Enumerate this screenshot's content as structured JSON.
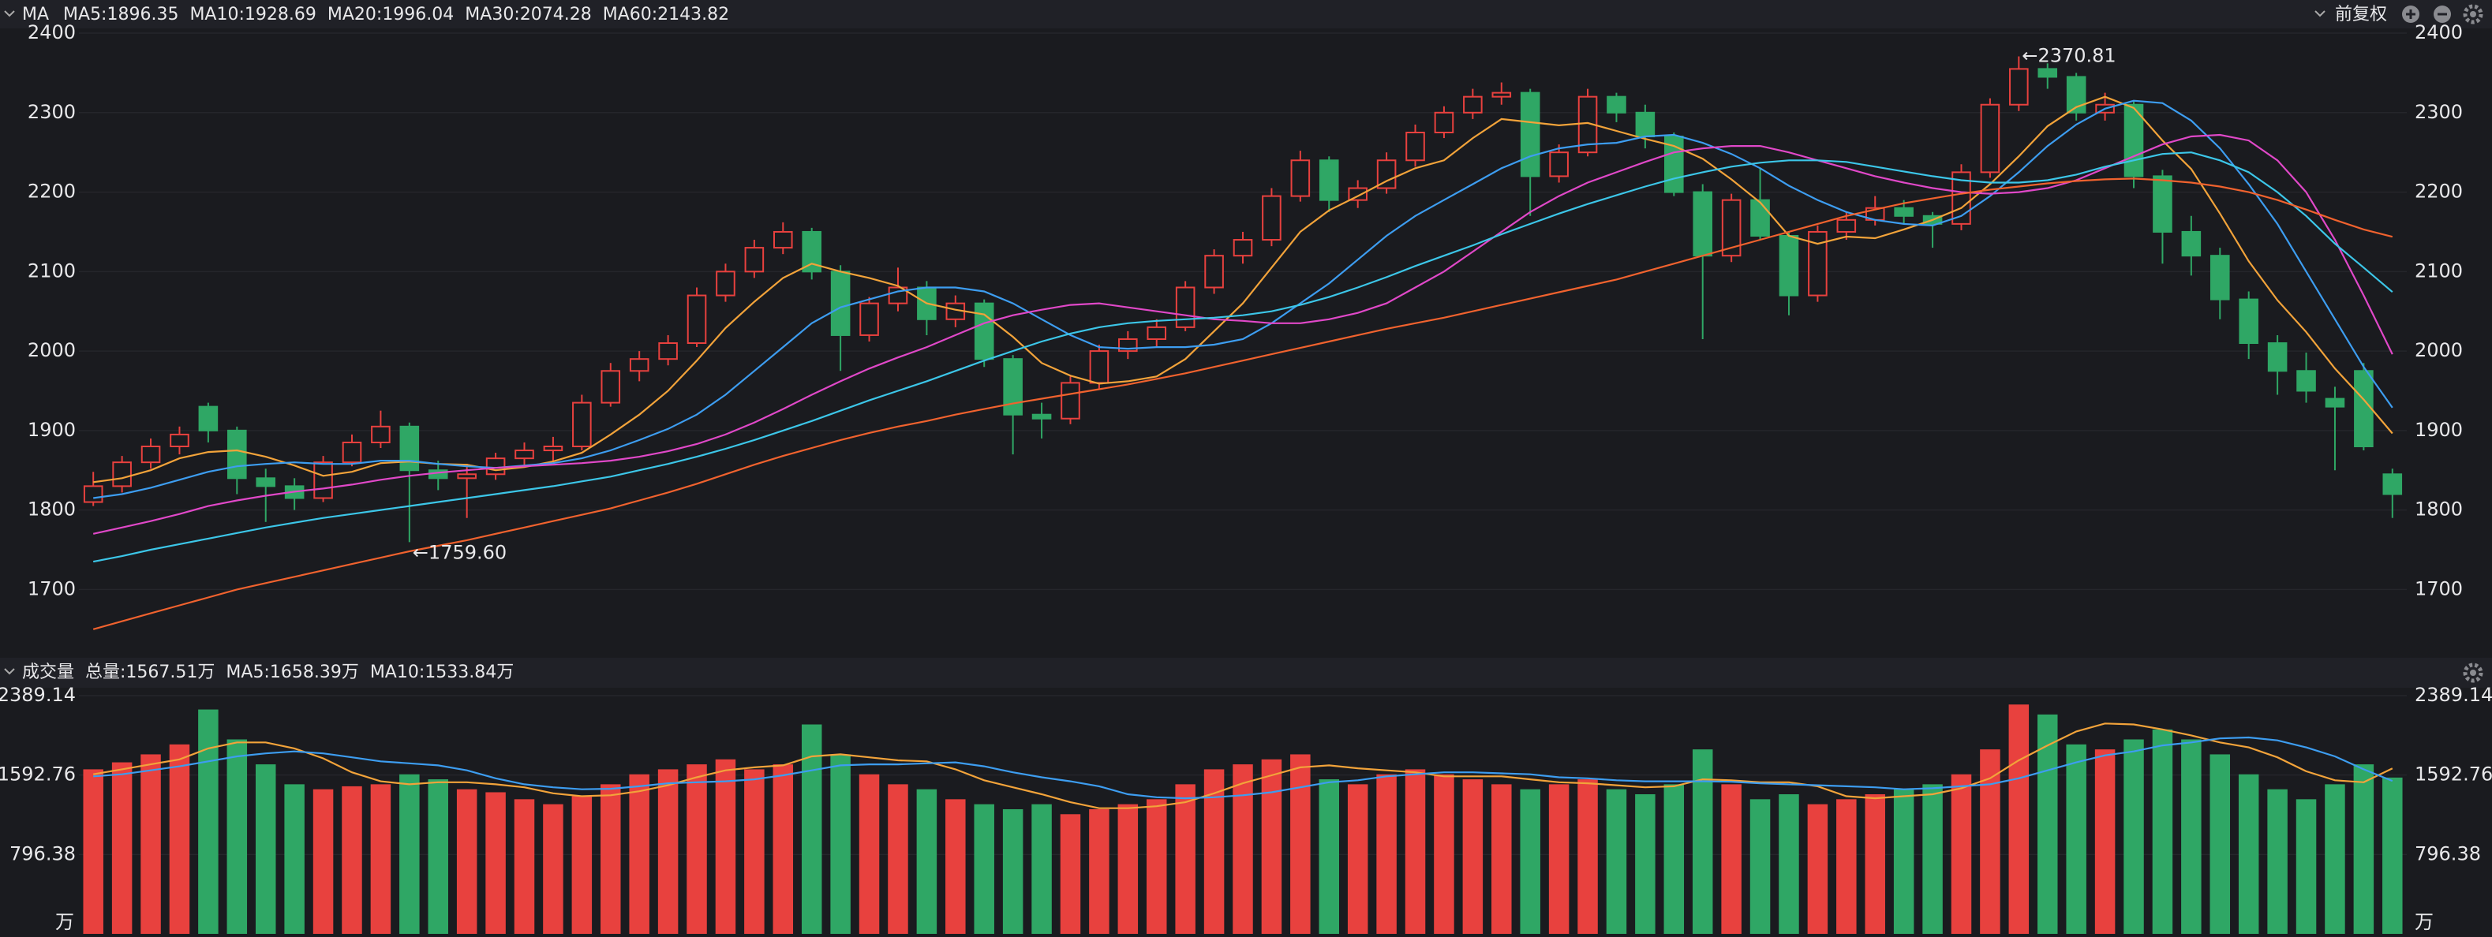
{
  "chart_data": [
    {
      "type": "candlestick",
      "title": "MA",
      "adjustment": "前复权",
      "up_color": "#e8413e",
      "down_color": "#2fa765",
      "ylim": [
        1618,
        2406
      ],
      "yticks": [
        1700,
        1800,
        1900,
        2000,
        2100,
        2200,
        2300,
        2400
      ],
      "grid": true,
      "open": [
        1810,
        1830,
        1860,
        1880,
        1930,
        1900,
        1840,
        1830,
        1815,
        1860,
        1885,
        1905,
        1850,
        1840,
        1845,
        1865,
        1875,
        1880,
        1935,
        1975,
        1990,
        2010,
        2070,
        2100,
        2130,
        2150,
        2100,
        2020,
        2060,
        2080,
        2040,
        2060,
        1990,
        1920,
        1915,
        1960,
        2000,
        2015,
        2030,
        2080,
        2120,
        2140,
        2195,
        2240,
        2190,
        2205,
        2240,
        2275,
        2300,
        2320,
        2325,
        2220,
        2250,
        2320,
        2300,
        2270,
        2200,
        2120,
        2190,
        2145,
        2070,
        2150,
        2165,
        2180,
        2170,
        2160,
        2225,
        2310,
        2355,
        2345,
        2300,
        2310,
        2220,
        2150,
        2120,
        2065,
        2010,
        1975,
        1940,
        1975,
        1845
      ],
      "high": [
        1848,
        1868,
        1890,
        1905,
        1935,
        1905,
        1852,
        1840,
        1868,
        1895,
        1925,
        1910,
        1862,
        1858,
        1872,
        1885,
        1892,
        1945,
        1985,
        2000,
        2020,
        2080,
        2110,
        2140,
        2162,
        2155,
        2108,
        2068,
        2105,
        2088,
        2070,
        2065,
        1995,
        1935,
        1968,
        2008,
        2025,
        2040,
        2088,
        2128,
        2150,
        2205,
        2252,
        2245,
        2215,
        2250,
        2285,
        2308,
        2330,
        2338,
        2330,
        2260,
        2330,
        2325,
        2310,
        2275,
        2210,
        2198,
        2230,
        2150,
        2158,
        2175,
        2195,
        2190,
        2175,
        2235,
        2318,
        2370.81,
        2362,
        2350,
        2325,
        2315,
        2228,
        2170,
        2130,
        2075,
        2020,
        1998,
        1955,
        1985,
        1852
      ],
      "low": [
        1805,
        1822,
        1852,
        1870,
        1885,
        1820,
        1785,
        1800,
        1810,
        1855,
        1878,
        1759.6,
        1825,
        1790,
        1838,
        1855,
        1862,
        1875,
        1930,
        1962,
        1982,
        2005,
        2062,
        2092,
        2122,
        2090,
        1975,
        2012,
        2050,
        2020,
        2030,
        1980,
        1870,
        1890,
        1908,
        1952,
        1990,
        2005,
        2025,
        2072,
        2110,
        2132,
        2188,
        2175,
        2180,
        2198,
        2232,
        2268,
        2292,
        2310,
        2170,
        2212,
        2245,
        2288,
        2255,
        2195,
        2015,
        2112,
        2140,
        2045,
        2062,
        2140,
        2158,
        2160,
        2130,
        2152,
        2218,
        2302,
        2330,
        2290,
        2290,
        2205,
        2110,
        2095,
        2040,
        1990,
        1945,
        1935,
        1850,
        1875,
        1790
      ],
      "close": [
        1830,
        1860,
        1880,
        1895,
        1900,
        1840,
        1830,
        1815,
        1860,
        1885,
        1905,
        1850,
        1840,
        1845,
        1865,
        1875,
        1880,
        1935,
        1975,
        1990,
        2010,
        2070,
        2100,
        2130,
        2150,
        2100,
        2020,
        2060,
        2080,
        2040,
        2060,
        1990,
        1920,
        1915,
        1960,
        2000,
        2015,
        2030,
        2080,
        2120,
        2140,
        2195,
        2240,
        2190,
        2205,
        2240,
        2275,
        2300,
        2320,
        2325,
        2220,
        2250,
        2320,
        2300,
        2270,
        2200,
        2120,
        2190,
        2145,
        2070,
        2150,
        2165,
        2180,
        2170,
        2160,
        2225,
        2310,
        2355,
        2345,
        2300,
        2310,
        2220,
        2150,
        2120,
        2065,
        2010,
        1975,
        1950,
        1930,
        1880,
        1820
      ],
      "series": [
        {
          "label": "MA5:1896.35",
          "color": "#f2a33a",
          "values": [
            1835,
            1840,
            1850,
            1865,
            1873,
            1875,
            1867,
            1856,
            1843,
            1848,
            1859,
            1861,
            1858,
            1857,
            1850,
            1854,
            1861,
            1872,
            1895,
            1920,
            1950,
            1988,
            2029,
            2062,
            2092,
            2110,
            2100,
            2092,
            2082,
            2060,
            2052,
            2046,
            2018,
            1985,
            1969,
            1959,
            1962,
            1968,
            1990,
            2025,
            2060,
            2105,
            2150,
            2177,
            2195,
            2214,
            2230,
            2240,
            2268,
            2292,
            2288,
            2284,
            2287,
            2277,
            2267,
            2258,
            2242,
            2216,
            2187,
            2145,
            2135,
            2144,
            2142,
            2153,
            2165,
            2180,
            2210,
            2245,
            2283,
            2307,
            2320,
            2306,
            2265,
            2229,
            2173,
            2113,
            2064,
            2024,
            1978,
            1939,
            1896.35
          ]
        },
        {
          "label": "MA10:1928.69",
          "color": "#3d9df0",
          "values": [
            1815,
            1820,
            1828,
            1838,
            1848,
            1855,
            1858,
            1860,
            1858,
            1858,
            1862,
            1862,
            1858,
            1855,
            1853,
            1856,
            1859,
            1865,
            1875,
            1888,
            1902,
            1920,
            1945,
            1975,
            2005,
            2035,
            2055,
            2065,
            2075,
            2080,
            2080,
            2075,
            2060,
            2040,
            2020,
            2005,
            2003,
            2005,
            2005,
            2008,
            2015,
            2035,
            2060,
            2085,
            2115,
            2145,
            2170,
            2190,
            2210,
            2230,
            2245,
            2255,
            2260,
            2262,
            2270,
            2272,
            2262,
            2248,
            2230,
            2208,
            2190,
            2175,
            2165,
            2160,
            2158,
            2170,
            2195,
            2225,
            2258,
            2285,
            2305,
            2315,
            2312,
            2290,
            2255,
            2210,
            2160,
            2100,
            2040,
            1980,
            1928.69
          ]
        },
        {
          "label": "MA20:1996.04",
          "color": "#e048c8",
          "values": [
            1770,
            1778,
            1786,
            1795,
            1805,
            1812,
            1818,
            1823,
            1827,
            1832,
            1838,
            1843,
            1847,
            1850,
            1853,
            1855,
            1857,
            1859,
            1862,
            1867,
            1874,
            1883,
            1895,
            1910,
            1927,
            1945,
            1962,
            1978,
            1992,
            2005,
            2020,
            2035,
            2045,
            2052,
            2058,
            2060,
            2055,
            2050,
            2045,
            2040,
            2038,
            2035,
            2035,
            2040,
            2048,
            2060,
            2080,
            2100,
            2125,
            2150,
            2175,
            2195,
            2212,
            2225,
            2238,
            2250,
            2255,
            2258,
            2258,
            2250,
            2240,
            2230,
            2220,
            2212,
            2205,
            2200,
            2198,
            2200,
            2205,
            2215,
            2230,
            2245,
            2260,
            2270,
            2272,
            2265,
            2240,
            2200,
            2140,
            2070,
            1996.04
          ]
        },
        {
          "label": "MA30:2074.28",
          "color": "#3cc6e8",
          "values": [
            1735,
            1742,
            1750,
            1757,
            1764,
            1771,
            1778,
            1784,
            1790,
            1795,
            1800,
            1805,
            1810,
            1815,
            1820,
            1825,
            1830,
            1836,
            1842,
            1850,
            1858,
            1867,
            1877,
            1888,
            1900,
            1912,
            1925,
            1938,
            1950,
            1962,
            1975,
            1988,
            2000,
            2012,
            2022,
            2030,
            2035,
            2038,
            2040,
            2042,
            2045,
            2050,
            2058,
            2068,
            2080,
            2093,
            2107,
            2120,
            2133,
            2147,
            2160,
            2173,
            2185,
            2196,
            2207,
            2217,
            2225,
            2232,
            2237,
            2240,
            2240,
            2238,
            2232,
            2226,
            2220,
            2215,
            2212,
            2212,
            2215,
            2222,
            2232,
            2240,
            2248,
            2250,
            2240,
            2225,
            2200,
            2170,
            2135,
            2105,
            2074.28
          ]
        },
        {
          "label": "MA60:2143.82",
          "color": "#f0622e",
          "values": [
            1650,
            1660,
            1670,
            1680,
            1690,
            1700,
            1708,
            1716,
            1724,
            1732,
            1740,
            1748,
            1755,
            1762,
            1770,
            1778,
            1786,
            1794,
            1802,
            1812,
            1822,
            1833,
            1845,
            1857,
            1868,
            1878,
            1888,
            1897,
            1905,
            1912,
            1920,
            1927,
            1934,
            1940,
            1946,
            1952,
            1958,
            1965,
            1972,
            1980,
            1988,
            1996,
            2004,
            2012,
            2020,
            2028,
            2035,
            2042,
            2050,
            2058,
            2066,
            2074,
            2082,
            2090,
            2100,
            2110,
            2120,
            2130,
            2140,
            2150,
            2160,
            2170,
            2178,
            2186,
            2192,
            2198,
            2203,
            2207,
            2211,
            2214,
            2216,
            2217,
            2215,
            2212,
            2207,
            2200,
            2190,
            2178,
            2165,
            2153,
            2143.82
          ]
        }
      ],
      "annotations": [
        {
          "label": "←2370.81",
          "value": 2370.81
        },
        {
          "label": "←1759.60",
          "value": 1759.6
        }
      ]
    },
    {
      "type": "volume",
      "title": "成交量",
      "total_label": "总量:1567.51万",
      "total_color": "#2fa765",
      "unit": "万",
      "ylim": [
        0,
        2468
      ],
      "yticks": [
        796.38,
        1592.76,
        2389.14
      ],
      "grid": true,
      "values": [
        1650,
        1720,
        1800,
        1900,
        2250,
        1950,
        1700,
        1500,
        1450,
        1480,
        1500,
        1600,
        1550,
        1450,
        1420,
        1350,
        1300,
        1380,
        1500,
        1600,
        1650,
        1700,
        1750,
        1650,
        1700,
        2100,
        1800,
        1600,
        1500,
        1450,
        1350,
        1300,
        1250,
        1300,
        1200,
        1250,
        1300,
        1350,
        1500,
        1650,
        1700,
        1750,
        1800,
        1550,
        1500,
        1600,
        1650,
        1600,
        1550,
        1500,
        1450,
        1500,
        1550,
        1450,
        1400,
        1500,
        1850,
        1500,
        1350,
        1400,
        1300,
        1350,
        1400,
        1450,
        1500,
        1600,
        1850,
        2300,
        2200,
        1900,
        1850,
        1950,
        2050,
        1950,
        1800,
        1600,
        1450,
        1350,
        1500,
        1700,
        1567.51
      ],
      "series": [
        {
          "label": "MA5:1658.39万",
          "color": "#f2a33a",
          "values": [
            1600,
            1650,
            1700,
            1750,
            1860,
            1920,
            1920,
            1860,
            1760,
            1620,
            1530,
            1500,
            1520,
            1520,
            1500,
            1470,
            1410,
            1380,
            1390,
            1430,
            1490,
            1570,
            1640,
            1670,
            1690,
            1780,
            1800,
            1770,
            1740,
            1730,
            1650,
            1540,
            1470,
            1400,
            1320,
            1260,
            1260,
            1280,
            1320,
            1410,
            1510,
            1590,
            1670,
            1690,
            1660,
            1640,
            1620,
            1580,
            1580,
            1580,
            1550,
            1520,
            1510,
            1490,
            1470,
            1480,
            1550,
            1540,
            1520,
            1520,
            1480,
            1380,
            1360,
            1380,
            1400,
            1460,
            1560,
            1740,
            1890,
            2030,
            2110,
            2100,
            2050,
            1990,
            1920,
            1870,
            1770,
            1630,
            1540,
            1520,
            1658.39
          ]
        },
        {
          "label": "MA10:1533.84万",
          "color": "#3d9df0",
          "values": [
            1580,
            1600,
            1640,
            1680,
            1730,
            1780,
            1810,
            1830,
            1810,
            1770,
            1730,
            1710,
            1690,
            1640,
            1560,
            1500,
            1470,
            1450,
            1455,
            1480,
            1510,
            1520,
            1530,
            1550,
            1590,
            1640,
            1690,
            1700,
            1700,
            1710,
            1720,
            1680,
            1620,
            1570,
            1530,
            1480,
            1400,
            1370,
            1360,
            1370,
            1390,
            1420,
            1470,
            1520,
            1540,
            1580,
            1600,
            1620,
            1620,
            1610,
            1600,
            1570,
            1560,
            1540,
            1530,
            1530,
            1530,
            1525,
            1510,
            1500,
            1490,
            1480,
            1470,
            1450,
            1460,
            1480,
            1500,
            1560,
            1640,
            1720,
            1790,
            1830,
            1890,
            1920,
            1960,
            1970,
            1940,
            1870,
            1780,
            1650,
            1533.84
          ]
        }
      ]
    }
  ]
}
